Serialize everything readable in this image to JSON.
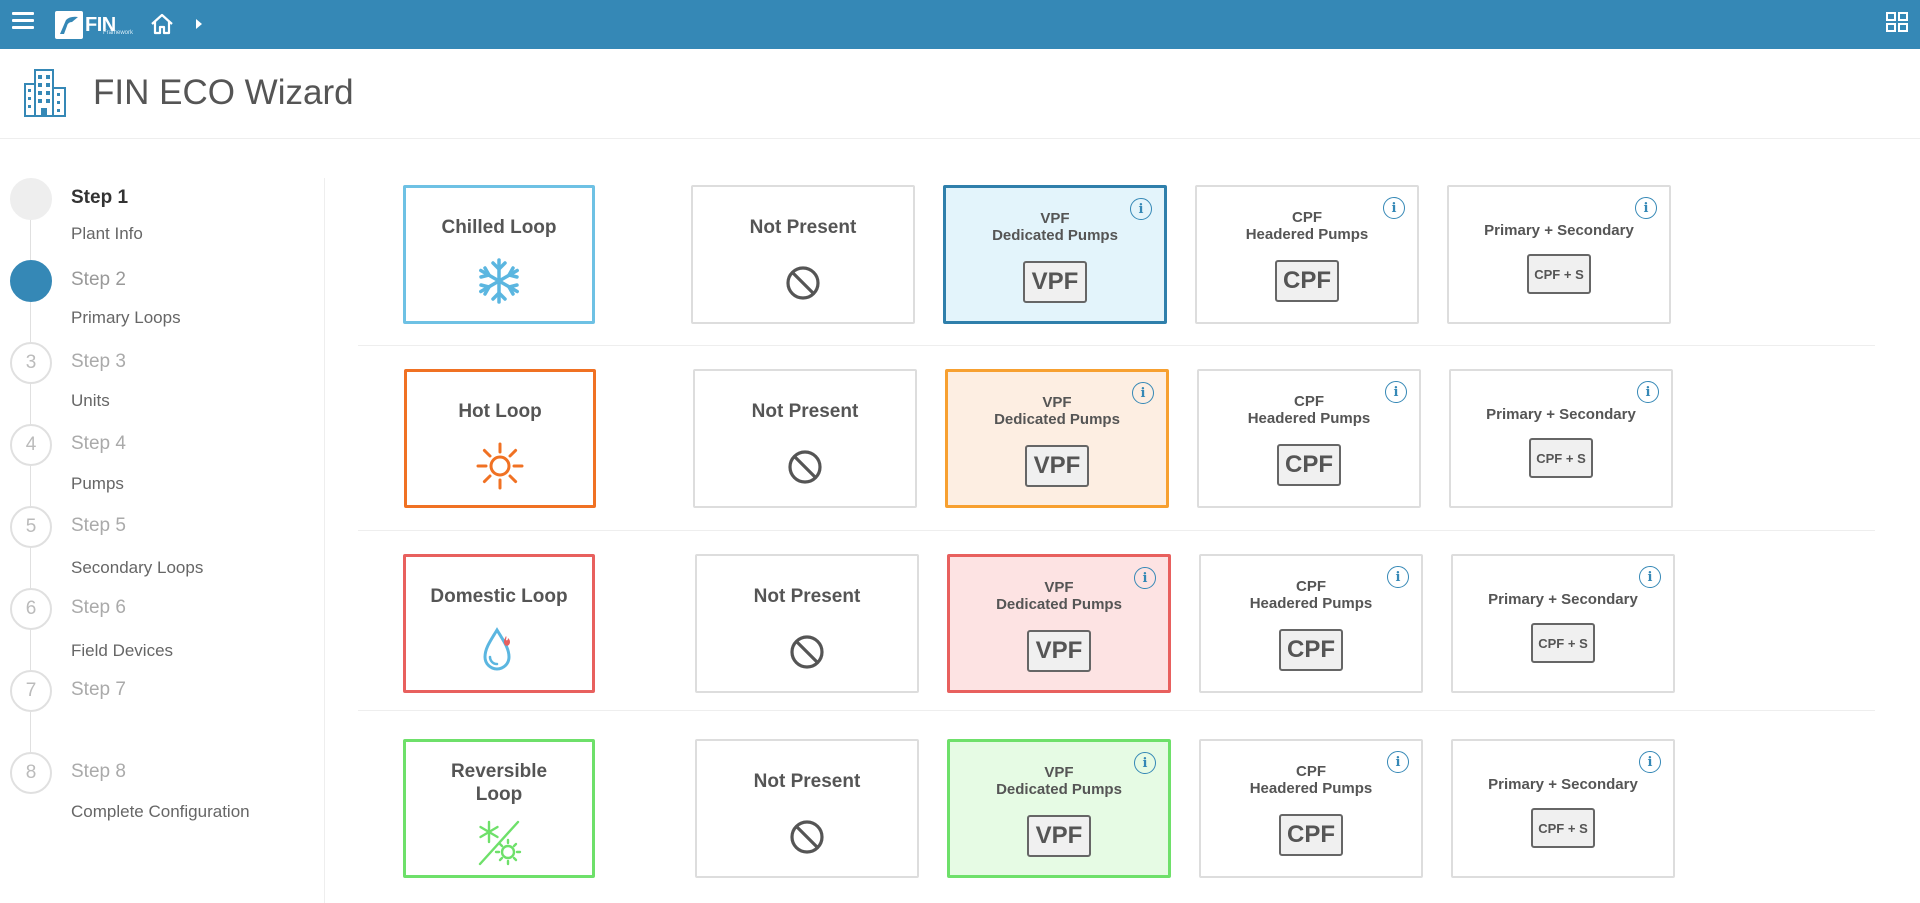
{
  "app": {
    "logo_text": "FIN",
    "logo_sub": "Framework"
  },
  "page": {
    "title": "FIN ECO Wizard"
  },
  "steps": [
    {
      "number": "",
      "title": "Step 1",
      "subtitle": "Plant Info",
      "state": "done"
    },
    {
      "number": "",
      "title": "Step 2",
      "subtitle": "Primary Loops",
      "state": "active"
    },
    {
      "number": "3",
      "title": "Step 3",
      "subtitle": "Units",
      "state": "pending"
    },
    {
      "number": "4",
      "title": "Step 4",
      "subtitle": "Pumps",
      "state": "pending"
    },
    {
      "number": "5",
      "title": "Step 5",
      "subtitle": "Secondary Loops",
      "state": "pending"
    },
    {
      "number": "6",
      "title": "Step 6",
      "subtitle": "Field Devices",
      "state": "pending"
    },
    {
      "number": "7",
      "title": "Step 7",
      "subtitle": "",
      "state": "pending"
    },
    {
      "number": "8",
      "title": "Step 8",
      "subtitle": "Complete Configuration",
      "state": "pending"
    }
  ],
  "options": {
    "not_present": "Not Present",
    "vpf_line1": "VPF",
    "vpf_line2": "Dedicated Pumps",
    "vpf_badge": "VPF",
    "cpf_line1": "CPF",
    "cpf_line2": "Headered Pumps",
    "cpf_badge": "CPF",
    "ps_label": "Primary + Secondary",
    "ps_badge": "CPF + S",
    "info": "i"
  },
  "loops": [
    {
      "label": "Chilled Loop",
      "icon": "snowflake-icon",
      "color": "#6ec1e4",
      "selected_bg": "#e3f4fb",
      "selected_border": "#2f7fab"
    },
    {
      "label": "Hot Loop",
      "icon": "sun-icon",
      "color": "#f07123",
      "selected_bg": "#fdeee2",
      "selected_border": "#f7a030"
    },
    {
      "label": "Domestic Loop",
      "icon": "water-drop-flame-icon",
      "color": "#e8605e",
      "selected_bg": "#fde3e3",
      "selected_border": "#e8605e"
    },
    {
      "label": "Reversible\nLoop",
      "label_line1": "Reversible",
      "label_line2": "Loop",
      "icon": "reversible-icon",
      "color": "#6ee06a",
      "selected_bg": "#e6fbe4",
      "selected_border": "#6ee06a"
    }
  ]
}
